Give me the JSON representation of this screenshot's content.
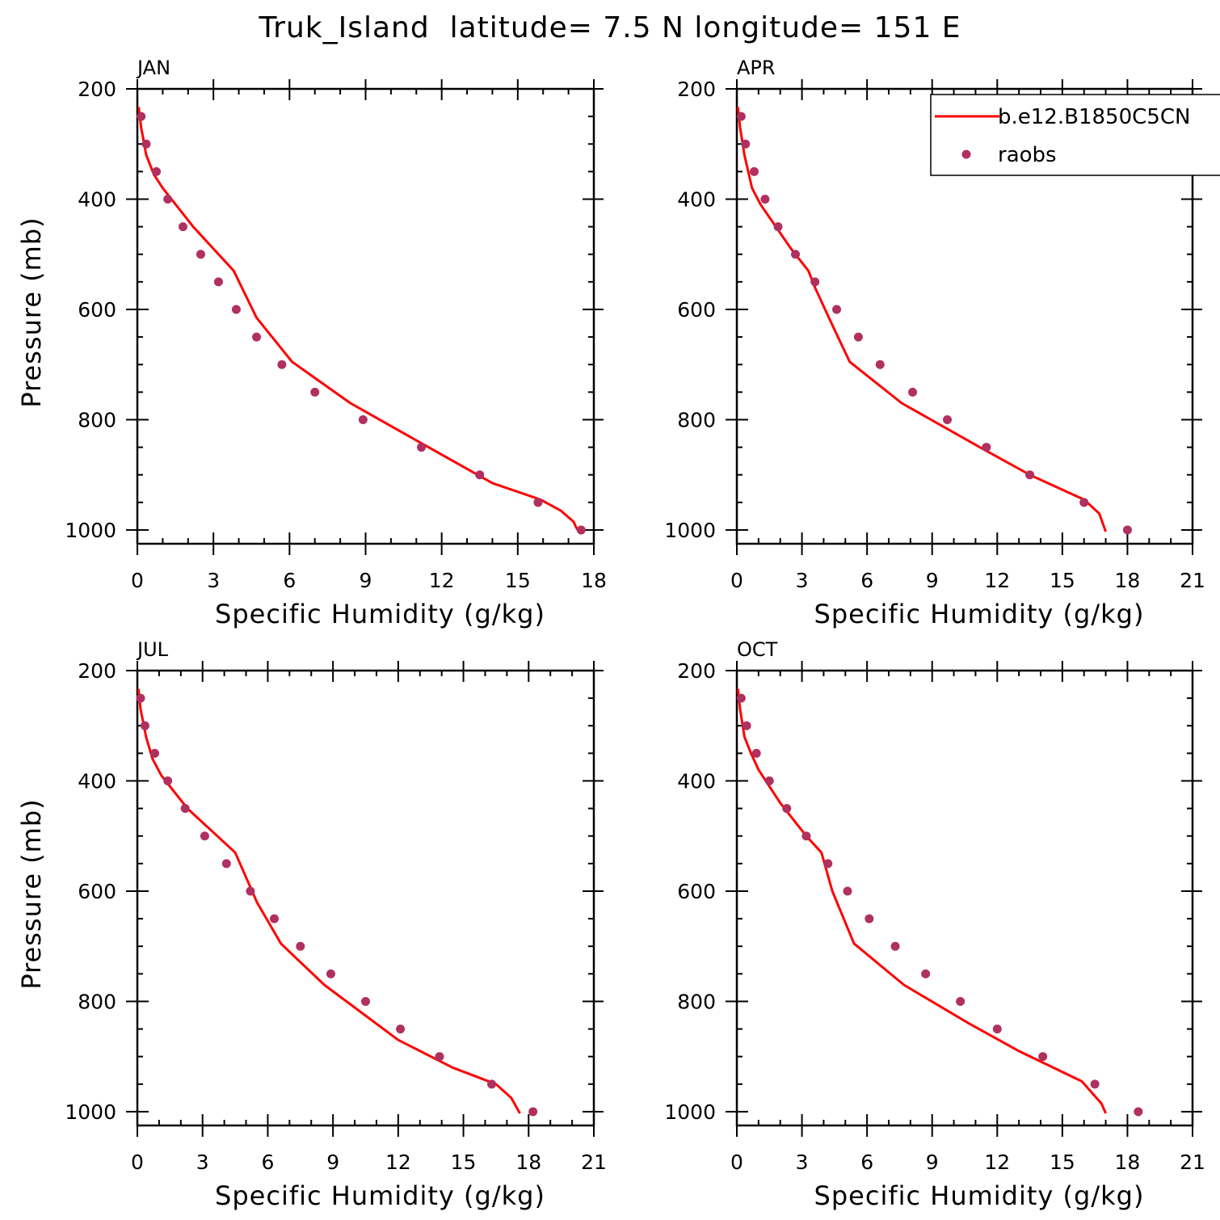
{
  "title": "Truk_Island  latitude= 7.5 N longitude= 151 E",
  "legend": {
    "model_label": "b.e12.B1850C5CN",
    "obs_label": "raobs"
  },
  "colors": {
    "model_line": "#ff0000",
    "obs_marker": "#b03060",
    "axis": "#000000"
  },
  "chart_data": [
    {
      "type": "line",
      "panel": "JAN",
      "xlabel": "Specific Humidity (g/kg)",
      "ylabel": "Pressure (mb)",
      "xlim": [
        0,
        18
      ],
      "xticks": [
        0,
        3,
        6,
        9,
        12,
        15,
        18
      ],
      "ylim": [
        1025,
        200
      ],
      "yticks": [
        200,
        400,
        600,
        800,
        1000
      ],
      "y_inverted": true,
      "series": [
        {
          "name": "b.e12.B1850C5CN",
          "kind": "line",
          "x": [
            0.05,
            0.15,
            0.35,
            0.65,
            1.0,
            2.2,
            3.8,
            4.7,
            6.1,
            8.4,
            11.1,
            14.0,
            15.9,
            16.7,
            17.2,
            17.3,
            17.4
          ],
          "y": [
            233,
            270,
            320,
            355,
            380,
            450,
            530,
            615,
            695,
            770,
            840,
            915,
            945,
            965,
            985,
            995,
            1003
          ]
        },
        {
          "name": "raobs",
          "kind": "scatter",
          "x": [
            0.15,
            0.35,
            0.75,
            1.2,
            1.8,
            2.5,
            3.2,
            3.9,
            4.7,
            5.7,
            7.0,
            8.9,
            11.2,
            13.5,
            15.8,
            17.5
          ],
          "y": [
            250,
            300,
            350,
            400,
            450,
            500,
            550,
            600,
            650,
            700,
            750,
            800,
            850,
            900,
            950,
            1000
          ]
        }
      ]
    },
    {
      "type": "line",
      "panel": "APR",
      "xlabel": "Specific Humidity (g/kg)",
      "ylabel": "",
      "xlim": [
        0,
        21
      ],
      "xticks": [
        0,
        3,
        6,
        9,
        12,
        15,
        18,
        21
      ],
      "ylim": [
        1025,
        200
      ],
      "yticks": [
        200,
        400,
        600,
        800,
        1000
      ],
      "y_inverted": true,
      "series": [
        {
          "name": "b.e12.B1850C5CN",
          "kind": "line",
          "x": [
            0.05,
            0.15,
            0.35,
            0.7,
            1.1,
            2.5,
            3.3,
            3.6,
            4.3,
            5.2,
            7.6,
            11.2,
            13.5,
            16.0,
            16.7,
            17.0
          ],
          "y": [
            233,
            270,
            320,
            380,
            410,
            490,
            530,
            560,
            620,
            695,
            770,
            850,
            900,
            945,
            970,
            1003
          ]
        },
        {
          "name": "raobs",
          "kind": "scatter",
          "x": [
            0.2,
            0.4,
            0.8,
            1.3,
            1.9,
            2.7,
            3.6,
            4.6,
            5.6,
            6.6,
            8.1,
            9.7,
            11.5,
            13.5,
            16.0,
            18.0
          ],
          "y": [
            250,
            300,
            350,
            400,
            450,
            500,
            550,
            600,
            650,
            700,
            750,
            800,
            850,
            900,
            950,
            1000
          ]
        }
      ]
    },
    {
      "type": "line",
      "panel": "JUL",
      "xlabel": "Specific Humidity (g/kg)",
      "ylabel": "Pressure (mb)",
      "xlim": [
        0,
        21
      ],
      "xticks": [
        0,
        3,
        6,
        9,
        12,
        15,
        18,
        21
      ],
      "ylim": [
        1025,
        200
      ],
      "yticks": [
        200,
        400,
        600,
        800,
        1000
      ],
      "y_inverted": true,
      "series": [
        {
          "name": "b.e12.B1850C5CN",
          "kind": "line",
          "x": [
            0.05,
            0.15,
            0.4,
            0.7,
            1.1,
            2.3,
            4.5,
            5.5,
            6.6,
            8.6,
            12.0,
            14.5,
            16.5,
            17.2,
            17.6
          ],
          "y": [
            233,
            270,
            320,
            360,
            390,
            450,
            530,
            620,
            695,
            770,
            870,
            920,
            950,
            975,
            1003
          ]
        },
        {
          "name": "raobs",
          "kind": "scatter",
          "x": [
            0.15,
            0.35,
            0.8,
            1.4,
            2.2,
            3.1,
            4.1,
            5.2,
            6.3,
            7.5,
            8.9,
            10.5,
            12.1,
            13.9,
            16.3,
            18.2
          ],
          "y": [
            250,
            300,
            350,
            400,
            450,
            500,
            550,
            600,
            650,
            700,
            750,
            800,
            850,
            900,
            950,
            1000
          ]
        }
      ]
    },
    {
      "type": "line",
      "panel": "OCT",
      "xlabel": "Specific Humidity (g/kg)",
      "ylabel": "",
      "xlim": [
        0,
        21
      ],
      "xticks": [
        0,
        3,
        6,
        9,
        12,
        15,
        18,
        21
      ],
      "ylim": [
        1025,
        200
      ],
      "yticks": [
        200,
        400,
        600,
        800,
        1000
      ],
      "y_inverted": true,
      "series": [
        {
          "name": "b.e12.B1850C5CN",
          "kind": "line",
          "x": [
            0.05,
            0.15,
            0.35,
            0.65,
            1.0,
            2.0,
            3.2,
            3.9,
            4.4,
            5.4,
            7.7,
            10.7,
            13.0,
            15.9,
            16.8,
            17.0
          ],
          "y": [
            233,
            270,
            320,
            350,
            380,
            440,
            500,
            530,
            600,
            695,
            770,
            840,
            890,
            945,
            985,
            1003
          ]
        },
        {
          "name": "raobs",
          "kind": "scatter",
          "x": [
            0.2,
            0.45,
            0.9,
            1.5,
            2.3,
            3.2,
            4.2,
            5.1,
            6.1,
            7.3,
            8.7,
            10.3,
            12.0,
            14.1,
            16.5,
            18.5
          ],
          "y": [
            250,
            300,
            350,
            400,
            450,
            500,
            550,
            600,
            650,
            700,
            750,
            800,
            850,
            900,
            950,
            1000
          ]
        }
      ]
    }
  ]
}
